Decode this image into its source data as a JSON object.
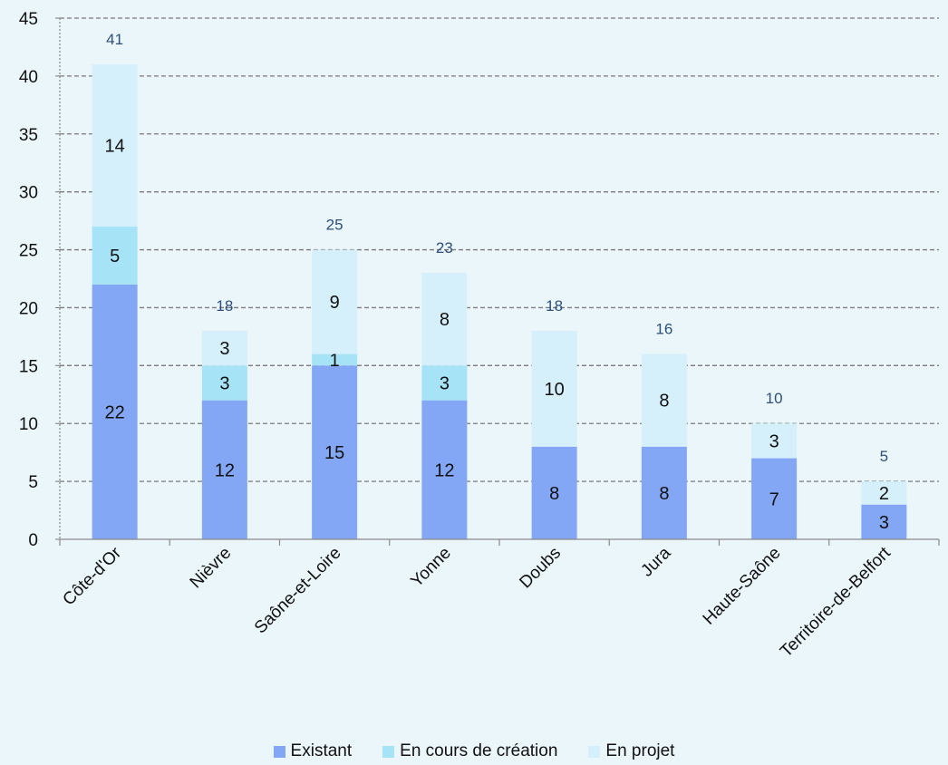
{
  "chart_data": {
    "type": "bar",
    "stacked": true,
    "categories": [
      "Côte-d'Or",
      "Nièvre",
      "Saône-et-Loire",
      "Yonne",
      "Doubs",
      "Jura",
      "Haute-Saône",
      "Territoire-de-Belfort"
    ],
    "series": [
      {
        "name": "Existant",
        "color": "#83a6f5",
        "values": [
          22,
          12,
          15,
          12,
          8,
          8,
          7,
          3
        ]
      },
      {
        "name": "En cours de création",
        "color": "#a6e3f7",
        "values": [
          5,
          3,
          1,
          3,
          0,
          0,
          0,
          0
        ]
      },
      {
        "name": "En projet",
        "color": "#d5f0fb",
        "values": [
          14,
          3,
          9,
          8,
          10,
          8,
          3,
          2
        ]
      }
    ],
    "totals": [
      41,
      18,
      25,
      23,
      18,
      16,
      10,
      5
    ],
    "ylim": [
      0,
      45
    ],
    "yticks": [
      0,
      5,
      10,
      15,
      20,
      25,
      30,
      35,
      40,
      45
    ],
    "grid": "horizontal-dashed",
    "legend_position": "bottom"
  }
}
